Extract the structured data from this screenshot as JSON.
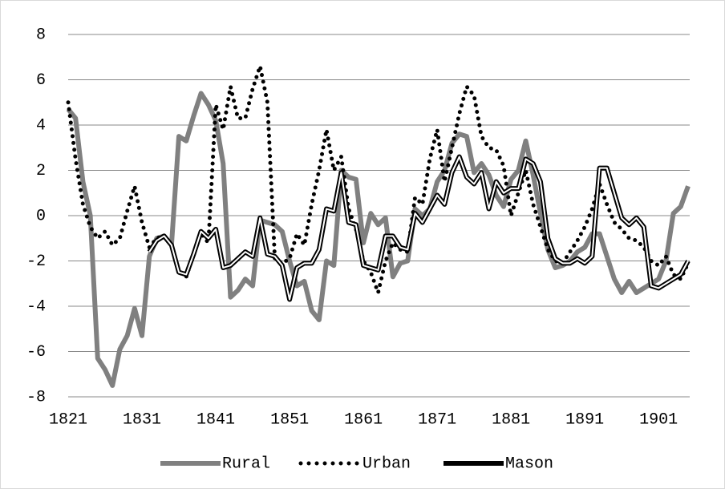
{
  "chart_data": {
    "type": "line",
    "x": [
      1821,
      1822,
      1823,
      1824,
      1825,
      1826,
      1827,
      1828,
      1829,
      1830,
      1831,
      1832,
      1833,
      1834,
      1835,
      1836,
      1837,
      1838,
      1839,
      1840,
      1841,
      1842,
      1843,
      1844,
      1845,
      1846,
      1847,
      1848,
      1849,
      1850,
      1851,
      1852,
      1853,
      1854,
      1855,
      1856,
      1857,
      1858,
      1859,
      1860,
      1861,
      1862,
      1863,
      1864,
      1865,
      1866,
      1867,
      1868,
      1869,
      1870,
      1871,
      1872,
      1873,
      1874,
      1875,
      1876,
      1877,
      1878,
      1879,
      1880,
      1881,
      1882,
      1883,
      1884,
      1885,
      1886,
      1887,
      1888,
      1889,
      1890,
      1891,
      1892,
      1893,
      1894,
      1895,
      1896,
      1897,
      1898,
      1899,
      1900,
      1901,
      1902,
      1903,
      1904,
      1905
    ],
    "xlim": [
      1821,
      1905
    ],
    "xticks": [
      1821,
      1831,
      1841,
      1851,
      1861,
      1871,
      1881,
      1891,
      1901
    ],
    "ylim": [
      -8,
      8
    ],
    "yticks": [
      -8,
      -6,
      -4,
      -2,
      0,
      2,
      4,
      6,
      8
    ],
    "grid": true,
    "legend": "bottom",
    "series": [
      {
        "name": "Rural",
        "color": "#808080",
        "style": "solid",
        "values": [
          4.7,
          4.3,
          1.5,
          0,
          -6.3,
          -6.8,
          -7.5,
          -5.9,
          -5.3,
          -4.1,
          -5.3,
          -1.8,
          -1.0,
          -0.9,
          -1.3,
          3.5,
          3.3,
          4.4,
          5.4,
          4.9,
          4.2,
          2.3,
          -3.6,
          -3.3,
          -2.8,
          -3.1,
          -0.2,
          -0.3,
          -0.4,
          -0.7,
          -2.0,
          -3.1,
          -2.9,
          -4.2,
          -4.6,
          -2.0,
          -2.2,
          2.0,
          1.7,
          1.6,
          -1.2,
          0.1,
          -0.4,
          -0.1,
          -2.7,
          -2.1,
          -2.0,
          0.3,
          0.0,
          0.3,
          1.5,
          2.0,
          3.2,
          3.6,
          3.5,
          1.9,
          2.3,
          1.8,
          0.9,
          0.4,
          1.6,
          2.0,
          3.3,
          1.8,
          0.1,
          -1.5,
          -2.3,
          -2.2,
          -2.0,
          -1.6,
          -1.4,
          -0.8,
          -0.8,
          -1.8,
          -2.8,
          -3.4,
          -2.9,
          -3.4,
          -3.2,
          -3.0,
          -2.8,
          -2.0,
          0.1,
          0.4,
          1.3
        ]
      },
      {
        "name": "Urban",
        "color": "#000000",
        "style": "dotted",
        "values": [
          5.0,
          2.5,
          0.5,
          -0.5,
          -1.0,
          -0.7,
          -1.3,
          -1.0,
          0.2,
          1.3,
          -0.3,
          -1.4,
          -1.0,
          -0.9,
          -1.3,
          -2.5,
          -2.7,
          -1.7,
          -0.8,
          -1.2,
          4.9,
          3.8,
          5.7,
          4.3,
          4.3,
          5.6,
          6.6,
          5.0,
          -1.9,
          -2.1,
          -1.9,
          -0.8,
          -1.3,
          0.5,
          2.0,
          3.8,
          2.0,
          2.6,
          0.3,
          -0.6,
          -2.0,
          -2.5,
          -3.4,
          -2.0,
          -1.2,
          -1.5,
          -1.6,
          0.8,
          0.5,
          2.5,
          3.8,
          1.5,
          3.0,
          4.5,
          5.7,
          5.3,
          3.5,
          3.0,
          2.9,
          2.2,
          0.0,
          1.0,
          2.0,
          0.5,
          -0.5,
          -1.5,
          -2.0,
          -2.1,
          -1.6,
          -1.1,
          -0.5,
          0.3,
          1.4,
          0.5,
          -0.3,
          -0.6,
          -1.0,
          -1.1,
          -1.4,
          -2.0,
          -2.2,
          -1.8,
          -2.6,
          -2.8,
          -2.1
        ]
      },
      {
        "name": "Mason",
        "color": "#000000",
        "style": "double",
        "values": [
          null,
          null,
          null,
          null,
          null,
          null,
          null,
          null,
          null,
          null,
          null,
          -1.6,
          -1.1,
          -0.9,
          -1.3,
          -2.5,
          -2.6,
          -1.7,
          -0.7,
          -1.0,
          -0.6,
          -2.3,
          -2.2,
          -1.9,
          -1.6,
          -1.8,
          -0.1,
          -1.7,
          -1.8,
          -2.2,
          -3.7,
          -2.3,
          -2.1,
          -2.1,
          -1.5,
          0.3,
          0.2,
          1.9,
          -0.3,
          -0.4,
          -2.2,
          -2.3,
          -2.4,
          -0.9,
          -0.9,
          -1.4,
          -1.5,
          0.1,
          -0.3,
          0.3,
          0.9,
          0.5,
          1.9,
          2.6,
          1.7,
          1.4,
          1.9,
          0.3,
          1.5,
          1.0,
          1.2,
          1.2,
          2.5,
          2.3,
          1.5,
          -1.0,
          -1.9,
          -2.1,
          -2.1,
          -1.9,
          -2.1,
          -1.8,
          2.1,
          2.1,
          1.0,
          -0.1,
          -0.4,
          -0.1,
          -0.5,
          -3.1,
          -3.2,
          -3.0,
          -2.8,
          -2.6,
          -2.0
        ]
      }
    ]
  }
}
